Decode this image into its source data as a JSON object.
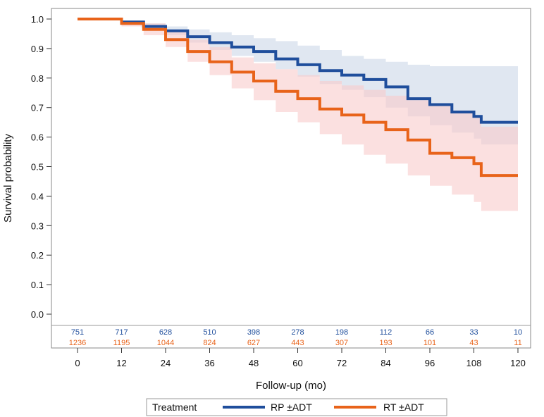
{
  "chart_data": {
    "type": "line",
    "title": "",
    "xlabel": "Follow-up (mo)",
    "ylabel": "Survival probability",
    "xlim": [
      0,
      120
    ],
    "ylim": [
      0.0,
      1.0
    ],
    "xticks": [
      0,
      12,
      24,
      36,
      48,
      60,
      72,
      84,
      96,
      108,
      120
    ],
    "yticks": [
      0.0,
      0.1,
      0.2,
      0.3,
      0.4,
      0.5,
      0.6,
      0.7,
      0.8,
      0.9,
      1.0
    ],
    "ytick_labels": [
      "0.0",
      "0.1",
      "0.2",
      "0.3",
      "0.4",
      "0.5",
      "0.6",
      "0.7",
      "0.8",
      "0.9",
      "1.0"
    ],
    "grid": false,
    "legend": {
      "title": "Treatment",
      "placement": "bottom"
    },
    "series": [
      {
        "name": "RP ±ADT",
        "color": "#1f4e9c",
        "band_color": "#dbe3ef",
        "x": [
          0,
          7,
          12,
          18,
          24,
          30,
          36,
          42,
          48,
          54,
          60,
          66,
          72,
          78,
          84,
          90,
          96,
          102,
          108,
          110,
          120
        ],
        "y": [
          1.0,
          1.0,
          0.99,
          0.975,
          0.96,
          0.94,
          0.92,
          0.905,
          0.89,
          0.865,
          0.845,
          0.825,
          0.81,
          0.795,
          0.77,
          0.73,
          0.71,
          0.685,
          0.67,
          0.65,
          0.65
        ],
        "lower": [
          1.0,
          1.0,
          0.985,
          0.965,
          0.945,
          0.92,
          0.895,
          0.875,
          0.855,
          0.83,
          0.805,
          0.78,
          0.76,
          0.735,
          0.7,
          0.67,
          0.64,
          0.615,
          0.595,
          0.575,
          0.575
        ],
        "upper": [
          1.0,
          1.0,
          0.995,
          0.985,
          0.975,
          0.965,
          0.955,
          0.945,
          0.935,
          0.925,
          0.91,
          0.895,
          0.875,
          0.865,
          0.855,
          0.845,
          0.84,
          0.84,
          0.84,
          0.84,
          0.84
        ],
        "at_risk": [
          751,
          717,
          628,
          510,
          398,
          278,
          198,
          112,
          66,
          33,
          10
        ]
      },
      {
        "name": "RT ±ADT",
        "color": "#e8631a",
        "band_color": "#f8cccc",
        "x": [
          0,
          7,
          12,
          18,
          24,
          30,
          36,
          42,
          48,
          54,
          60,
          66,
          72,
          78,
          84,
          90,
          96,
          102,
          108,
          110,
          120
        ],
        "y": [
          1.0,
          1.0,
          0.985,
          0.965,
          0.93,
          0.89,
          0.855,
          0.82,
          0.79,
          0.755,
          0.73,
          0.695,
          0.675,
          0.65,
          0.625,
          0.59,
          0.545,
          0.53,
          0.51,
          0.47,
          0.47
        ],
        "lower": [
          1.0,
          1.0,
          0.975,
          0.945,
          0.905,
          0.855,
          0.81,
          0.765,
          0.725,
          0.685,
          0.65,
          0.61,
          0.575,
          0.54,
          0.51,
          0.47,
          0.435,
          0.405,
          0.38,
          0.35,
          0.35
        ],
        "upper": [
          1.0,
          1.0,
          0.995,
          0.985,
          0.96,
          0.93,
          0.905,
          0.87,
          0.85,
          0.83,
          0.81,
          0.79,
          0.775,
          0.76,
          0.74,
          0.725,
          0.705,
          0.69,
          0.665,
          0.635,
          0.635
        ],
        "at_risk": [
          1236,
          1195,
          1044,
          824,
          627,
          443,
          307,
          193,
          101,
          43,
          11
        ]
      }
    ]
  }
}
